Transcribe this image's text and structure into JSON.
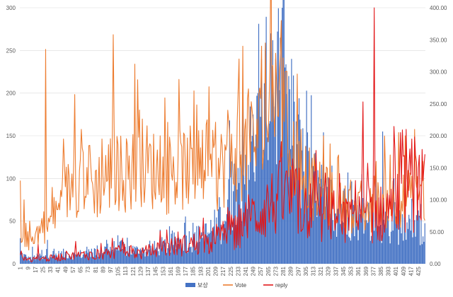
{
  "chart_data": {
    "type": "bar+line",
    "title": "",
    "x": {
      "start": 1,
      "end": 432,
      "tick_step": 8
    },
    "y_left": {
      "range": [
        0,
        300
      ],
      "ticks": [
        "0",
        "50",
        "100",
        "150",
        "200",
        "250",
        "300"
      ]
    },
    "y_right": {
      "range": [
        0,
        400
      ],
      "ticks": [
        "0.00",
        "50.00",
        "100.00",
        "150.00",
        "200.00",
        "250.00",
        "300.00",
        "350.00",
        "400.00"
      ]
    },
    "grid": true,
    "legend": {
      "position": "bottom",
      "entries": [
        "보상",
        "Vote",
        "reply"
      ]
    },
    "series": [
      {
        "name": "보상",
        "kind": "bar",
        "axis": "left",
        "color": "#4472C4",
        "keypoints": [
          [
            1,
            12
          ],
          [
            10,
            6
          ],
          [
            20,
            8
          ],
          [
            30,
            12
          ],
          [
            40,
            10
          ],
          [
            50,
            12
          ],
          [
            60,
            10
          ],
          [
            70,
            12
          ],
          [
            80,
            14
          ],
          [
            90,
            16
          ],
          [
            100,
            18
          ],
          [
            110,
            18
          ],
          [
            120,
            16
          ],
          [
            130,
            14
          ],
          [
            140,
            16
          ],
          [
            150,
            20
          ],
          [
            160,
            22
          ],
          [
            170,
            26
          ],
          [
            180,
            28
          ],
          [
            190,
            30
          ],
          [
            200,
            34
          ],
          [
            210,
            44
          ],
          [
            220,
            56
          ],
          [
            225,
            75
          ],
          [
            230,
            90
          ],
          [
            235,
            100
          ],
          [
            240,
            115
          ],
          [
            245,
            125
          ],
          [
            250,
            135
          ],
          [
            255,
            150
          ],
          [
            260,
            175
          ],
          [
            265,
            195
          ],
          [
            270,
            205
          ],
          [
            275,
            200
          ],
          [
            280,
            210
          ],
          [
            285,
            170
          ],
          [
            290,
            160
          ],
          [
            295,
            145
          ],
          [
            300,
            125
          ],
          [
            305,
            110
          ],
          [
            310,
            95
          ],
          [
            320,
            80
          ],
          [
            330,
            70
          ],
          [
            340,
            65
          ],
          [
            350,
            60
          ],
          [
            360,
            55
          ],
          [
            370,
            52
          ],
          [
            380,
            50
          ],
          [
            390,
            48
          ],
          [
            400,
            48
          ],
          [
            410,
            46
          ],
          [
            420,
            44
          ],
          [
            432,
            42
          ]
        ],
        "peaks": [
          [
            1,
            30
          ],
          [
            14,
            20
          ],
          [
            30,
            28
          ],
          [
            72,
            20
          ],
          [
            93,
            28
          ],
          [
            150,
            40
          ],
          [
            160,
            44
          ],
          [
            185,
            48
          ],
          [
            213,
            78
          ],
          [
            224,
            168
          ],
          [
            226,
            120
          ],
          [
            238,
            190
          ],
          [
            254,
            200
          ],
          [
            258,
            240
          ],
          [
            262,
            250
          ],
          [
            268,
            270
          ],
          [
            270,
            262
          ],
          [
            273,
            240
          ],
          [
            278,
            265
          ],
          [
            280,
            300
          ],
          [
            283,
            230
          ],
          [
            287,
            220
          ],
          [
            297,
            175
          ],
          [
            305,
            138
          ],
          [
            315,
            130
          ],
          [
            324,
            154
          ],
          [
            333,
            115
          ],
          [
            350,
            107
          ],
          [
            365,
            105
          ],
          [
            380,
            113
          ],
          [
            387,
            155
          ],
          [
            399,
            100
          ],
          [
            410,
            70
          ],
          [
            420,
            60
          ],
          [
            428,
            70
          ]
        ]
      },
      {
        "name": "Vote",
        "kind": "line",
        "axis": "right",
        "color": "#ED7D31",
        "keypoints": [
          [
            1,
            40
          ],
          [
            10,
            35
          ],
          [
            20,
            50
          ],
          [
            30,
            60
          ],
          [
            40,
            80
          ],
          [
            50,
            110
          ],
          [
            60,
            130
          ],
          [
            70,
            140
          ],
          [
            80,
            120
          ],
          [
            90,
            130
          ],
          [
            100,
            150
          ],
          [
            110,
            140
          ],
          [
            120,
            145
          ],
          [
            130,
            160
          ],
          [
            140,
            150
          ],
          [
            150,
            140
          ],
          [
            160,
            135
          ],
          [
            170,
            145
          ],
          [
            180,
            150
          ],
          [
            190,
            145
          ],
          [
            200,
            150
          ],
          [
            210,
            140
          ],
          [
            220,
            160
          ],
          [
            230,
            170
          ],
          [
            240,
            175
          ],
          [
            250,
            190
          ],
          [
            260,
            210
          ],
          [
            265,
            240
          ],
          [
            270,
            260
          ],
          [
            275,
            270
          ],
          [
            280,
            250
          ],
          [
            285,
            210
          ],
          [
            290,
            175
          ],
          [
            300,
            150
          ],
          [
            310,
            125
          ],
          [
            320,
            110
          ],
          [
            330,
            105
          ],
          [
            340,
            90
          ],
          [
            350,
            85
          ],
          [
            360,
            80
          ],
          [
            370,
            80
          ],
          [
            380,
            90
          ],
          [
            390,
            95
          ],
          [
            400,
            100
          ],
          [
            410,
            100
          ],
          [
            420,
            105
          ],
          [
            432,
            100
          ]
        ],
        "peaks": [
          [
            1,
            130
          ],
          [
            5,
            100
          ],
          [
            28,
            335
          ],
          [
            47,
            195
          ],
          [
            66,
            210
          ],
          [
            75,
            185
          ],
          [
            88,
            195
          ],
          [
            100,
            358
          ],
          [
            123,
            312
          ],
          [
            150,
            200
          ],
          [
            200,
            225
          ],
          [
            222,
            240
          ],
          [
            234,
            320
          ],
          [
            238,
            340
          ],
          [
            258,
            340
          ],
          [
            262,
            345
          ],
          [
            270,
            310
          ],
          [
            279,
            380
          ],
          [
            283,
            300
          ],
          [
            300,
            210
          ],
          [
            324,
            200
          ],
          [
            340,
            170
          ],
          [
            380,
            160
          ],
          [
            395,
            170
          ],
          [
            404,
            205
          ],
          [
            411,
            200
          ],
          [
            421,
            210
          ],
          [
            430,
            160
          ]
        ]
      },
      {
        "name": "reply",
        "kind": "line",
        "axis": "right",
        "color": "#E3181A",
        "keypoints": [
          [
            1,
            10
          ],
          [
            10,
            5
          ],
          [
            20,
            8
          ],
          [
            30,
            8
          ],
          [
            40,
            10
          ],
          [
            50,
            12
          ],
          [
            60,
            12
          ],
          [
            70,
            14
          ],
          [
            80,
            14
          ],
          [
            90,
            16
          ],
          [
            100,
            18
          ],
          [
            110,
            18
          ],
          [
            120,
            18
          ],
          [
            130,
            16
          ],
          [
            140,
            20
          ],
          [
            150,
            24
          ],
          [
            160,
            26
          ],
          [
            170,
            28
          ],
          [
            180,
            30
          ],
          [
            190,
            32
          ],
          [
            200,
            34
          ],
          [
            210,
            38
          ],
          [
            220,
            45
          ],
          [
            230,
            55
          ],
          [
            240,
            65
          ],
          [
            250,
            75
          ],
          [
            260,
            85
          ],
          [
            270,
            95
          ],
          [
            280,
            105
          ],
          [
            290,
            100
          ],
          [
            300,
            90
          ],
          [
            310,
            85
          ],
          [
            320,
            80
          ],
          [
            330,
            75
          ],
          [
            340,
            70
          ],
          [
            350,
            65
          ],
          [
            360,
            70
          ],
          [
            370,
            80
          ],
          [
            380,
            75
          ],
          [
            390,
            80
          ],
          [
            400,
            95
          ],
          [
            410,
            110
          ],
          [
            420,
            120
          ],
          [
            432,
            110
          ]
        ],
        "peaks": [
          [
            2,
            20
          ],
          [
            20,
            30
          ],
          [
            60,
            35
          ],
          [
            110,
            40
          ],
          [
            230,
            75
          ],
          [
            265,
            110
          ],
          [
            276,
            145
          ],
          [
            283,
            130
          ],
          [
            310,
            125
          ],
          [
            358,
            130
          ],
          [
            366,
            253
          ],
          [
            378,
            400
          ],
          [
            400,
            180
          ],
          [
            406,
            205
          ],
          [
            412,
            210
          ],
          [
            418,
            195
          ],
          [
            425,
            150
          ],
          [
            430,
            130
          ]
        ]
      }
    ]
  }
}
